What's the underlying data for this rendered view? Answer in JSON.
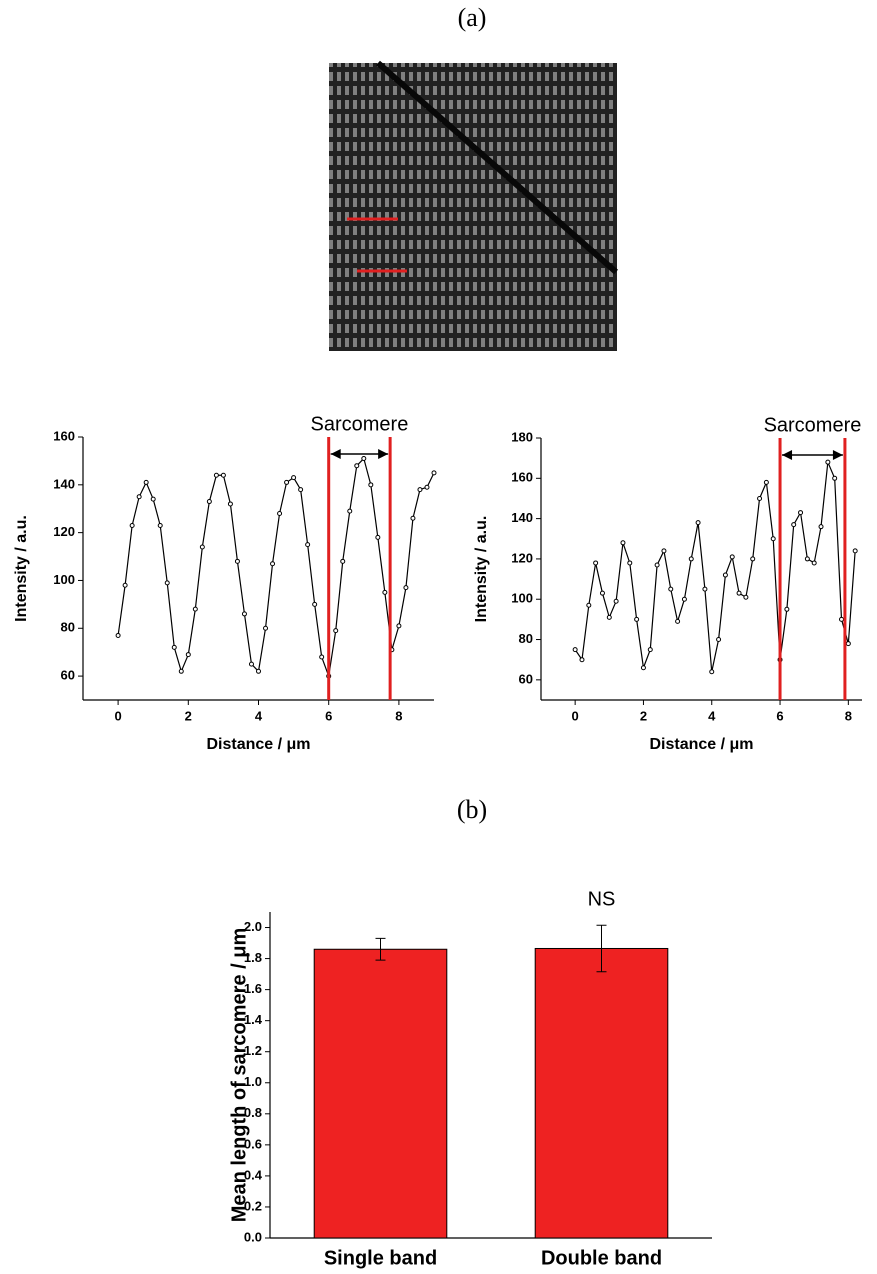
{
  "panel_labels": [
    "(a)",
    "(b)"
  ],
  "chart_data": [
    {
      "type": "line",
      "xlabel": "Distance / μm",
      "ylabel": "Intensity / a.u.",
      "x": [
        0,
        0.2,
        0.4,
        0.6,
        0.8,
        1,
        1.2,
        1.4,
        1.6,
        1.8,
        2,
        2.2,
        2.4,
        2.6,
        2.8,
        3,
        3.2,
        3.4,
        3.6,
        3.8,
        4,
        4.2,
        4.4,
        4.6,
        4.8,
        5,
        5.2,
        5.4,
        5.6,
        5.8,
        6,
        6.2,
        6.4,
        6.6,
        6.8,
        7,
        7.2,
        7.4,
        7.6,
        7.8,
        8,
        8.2,
        8.4,
        8.6,
        8.8,
        9
      ],
      "series": [
        {
          "color": "#000000",
          "values": [
            77,
            98,
            123,
            135,
            141,
            134,
            123,
            99,
            72,
            62,
            69,
            88,
            114,
            133,
            144,
            144,
            132,
            108,
            86,
            65,
            62,
            80,
            107,
            128,
            141,
            143,
            138,
            115,
            90,
            68,
            60,
            79,
            108,
            129,
            148,
            151,
            140,
            118,
            95,
            71,
            81,
            97,
            126,
            138,
            139,
            145
          ]
        }
      ],
      "xlim": [
        -1,
        9
      ],
      "ylim": [
        50,
        160
      ],
      "xticks": [
        0,
        2,
        4,
        6,
        8
      ],
      "yticks": [
        60,
        80,
        100,
        120,
        140,
        160
      ],
      "vlines": [
        6,
        7.75
      ],
      "vline_color": "#e02020",
      "annotation": "Sarcomere"
    },
    {
      "type": "line",
      "xlabel": "Distance / μm",
      "ylabel": "Intensity / a.u.",
      "x": [
        0,
        0.2,
        0.4,
        0.6,
        0.8,
        1,
        1.2,
        1.4,
        1.6,
        1.8,
        2,
        2.2,
        2.4,
        2.6,
        2.8,
        3,
        3.2,
        3.4,
        3.6,
        3.8,
        4,
        4.2,
        4.4,
        4.6,
        4.8,
        5,
        5.2,
        5.4,
        5.6,
        5.8,
        6,
        6.2,
        6.4,
        6.6,
        6.8,
        7,
        7.2,
        7.4,
        7.6,
        7.8,
        8,
        8.2
      ],
      "series": [
        {
          "color": "#000000",
          "values": [
            75,
            70,
            97,
            118,
            103,
            91,
            99,
            128,
            118,
            90,
            66,
            75,
            117,
            124,
            105,
            89,
            100,
            120,
            138,
            105,
            64,
            80,
            112,
            121,
            103,
            101,
            120,
            150,
            158,
            130,
            70,
            95,
            137,
            143,
            120,
            118,
            136,
            168,
            160,
            90,
            78,
            124
          ]
        }
      ],
      "xlim": [
        -1,
        8.4
      ],
      "ylim": [
        50,
        180
      ],
      "xticks": [
        0,
        2,
        4,
        6,
        8
      ],
      "yticks": [
        60,
        80,
        100,
        120,
        140,
        160,
        180
      ],
      "vlines": [
        6,
        7.9
      ],
      "vline_color": "#e02020",
      "annotation": "Sarcomere"
    },
    {
      "type": "bar",
      "ylabel": "Mean length of sarcomere / μm",
      "categories": [
        "Single band",
        "Double band"
      ],
      "values": [
        1.86,
        1.865
      ],
      "errors": [
        0.07,
        0.15
      ],
      "color": "#ee2222",
      "ylim": [
        0,
        2.1
      ],
      "yticks": [
        {
          "value": 0,
          "label": "0.0"
        },
        0.2,
        0.4,
        0.6,
        0.8,
        {
          "value": 1,
          "label": "1.0"
        },
        1.2,
        1.4,
        1.6,
        1.8,
        {
          "value": 2,
          "label": "2.0"
        }
      ],
      "annotation": "NS"
    }
  ]
}
